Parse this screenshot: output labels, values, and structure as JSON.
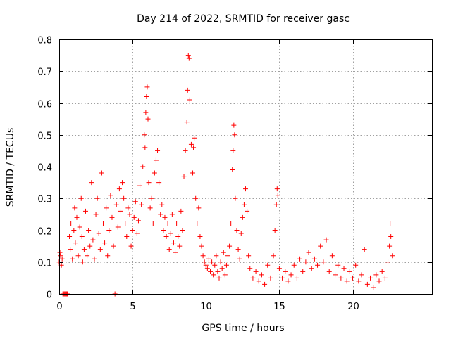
{
  "chart_data": {
    "type": "scatter",
    "title": "Day 214 of 2022, SRMTID for receiver gasc",
    "xlabel": "GPS time / hours",
    "ylabel": "SRMTID / TECUs",
    "xlim": [
      0,
      25.4
    ],
    "ylim": [
      0,
      0.8
    ],
    "xticks": [
      0,
      5,
      10,
      15,
      20
    ],
    "xtick_labels": [
      "0",
      "5",
      "10",
      "15",
      "20"
    ],
    "yticks": [
      0,
      0.1,
      0.2,
      0.3,
      0.4,
      0.5,
      0.6,
      0.7,
      0.8
    ],
    "ytick_labels": [
      "0",
      "0.1",
      "0.2",
      "0.3",
      "0.4",
      "0.5",
      "0.6",
      "0.7",
      "0.8"
    ],
    "grid": true,
    "marker": "+",
    "series": [
      {
        "name": "SRMTID",
        "color": "#ff0000",
        "points": [
          [
            0.0,
            0.1
          ],
          [
            0.05,
            0.13
          ],
          [
            0.1,
            0.12
          ],
          [
            0.15,
            0.09
          ],
          [
            0.2,
            0.11
          ],
          [
            0.25,
            0.0
          ],
          [
            0.3,
            0.0
          ],
          [
            0.35,
            0.0
          ],
          [
            0.4,
            0.0
          ],
          [
            0.45,
            0.0
          ],
          [
            0.5,
            0.0
          ],
          [
            0.55,
            0.0
          ],
          [
            0.6,
            0.0
          ],
          [
            0.7,
            0.18
          ],
          [
            0.75,
            0.14
          ],
          [
            0.8,
            0.22
          ],
          [
            0.9,
            0.11
          ],
          [
            1.0,
            0.2
          ],
          [
            1.05,
            0.27
          ],
          [
            1.1,
            0.16
          ],
          [
            1.2,
            0.24
          ],
          [
            1.3,
            0.12
          ],
          [
            1.4,
            0.21
          ],
          [
            1.5,
            0.3
          ],
          [
            1.55,
            0.18
          ],
          [
            1.6,
            0.1
          ],
          [
            1.7,
            0.14
          ],
          [
            1.8,
            0.26
          ],
          [
            1.9,
            0.12
          ],
          [
            2.0,
            0.2
          ],
          [
            2.1,
            0.15
          ],
          [
            2.2,
            0.35
          ],
          [
            2.3,
            0.17
          ],
          [
            2.4,
            0.11
          ],
          [
            2.5,
            0.25
          ],
          [
            2.6,
            0.3
          ],
          [
            2.7,
            0.19
          ],
          [
            2.8,
            0.14
          ],
          [
            2.9,
            0.38
          ],
          [
            3.0,
            0.22
          ],
          [
            3.1,
            0.16
          ],
          [
            3.2,
            0.27
          ],
          [
            3.3,
            0.12
          ],
          [
            3.4,
            0.2
          ],
          [
            3.5,
            0.31
          ],
          [
            3.6,
            0.24
          ],
          [
            3.7,
            0.15
          ],
          [
            3.8,
            0.0
          ],
          [
            3.9,
            0.28
          ],
          [
            4.0,
            0.21
          ],
          [
            4.1,
            0.33
          ],
          [
            4.2,
            0.26
          ],
          [
            4.3,
            0.35
          ],
          [
            4.4,
            0.3
          ],
          [
            4.5,
            0.22
          ],
          [
            4.6,
            0.18
          ],
          [
            4.7,
            0.27
          ],
          [
            4.8,
            0.25
          ],
          [
            4.9,
            0.15
          ],
          [
            5.0,
            0.2
          ],
          [
            5.1,
            0.24
          ],
          [
            5.2,
            0.29
          ],
          [
            5.3,
            0.19
          ],
          [
            5.4,
            0.23
          ],
          [
            5.5,
            0.34
          ],
          [
            5.6,
            0.28
          ],
          [
            5.7,
            0.4
          ],
          [
            5.8,
            0.5
          ],
          [
            5.85,
            0.46
          ],
          [
            5.9,
            0.57
          ],
          [
            5.95,
            0.62
          ],
          [
            6.0,
            0.65
          ],
          [
            6.05,
            0.55
          ],
          [
            6.1,
            0.35
          ],
          [
            6.2,
            0.27
          ],
          [
            6.3,
            0.3
          ],
          [
            6.4,
            0.22
          ],
          [
            6.5,
            0.38
          ],
          [
            6.6,
            0.42
          ],
          [
            6.7,
            0.45
          ],
          [
            6.8,
            0.35
          ],
          [
            6.9,
            0.25
          ],
          [
            7.0,
            0.28
          ],
          [
            7.1,
            0.2
          ],
          [
            7.2,
            0.24
          ],
          [
            7.3,
            0.18
          ],
          [
            7.4,
            0.22
          ],
          [
            7.5,
            0.14
          ],
          [
            7.6,
            0.19
          ],
          [
            7.7,
            0.25
          ],
          [
            7.8,
            0.16
          ],
          [
            7.9,
            0.13
          ],
          [
            8.0,
            0.22
          ],
          [
            8.1,
            0.18
          ],
          [
            8.2,
            0.15
          ],
          [
            8.3,
            0.26
          ],
          [
            8.4,
            0.2
          ],
          [
            8.5,
            0.37
          ],
          [
            8.6,
            0.45
          ],
          [
            8.7,
            0.54
          ],
          [
            8.75,
            0.64
          ],
          [
            8.8,
            0.75
          ],
          [
            8.85,
            0.74
          ],
          [
            8.9,
            0.61
          ],
          [
            9.0,
            0.47
          ],
          [
            9.1,
            0.38
          ],
          [
            9.15,
            0.46
          ],
          [
            9.2,
            0.49
          ],
          [
            9.3,
            0.3
          ],
          [
            9.4,
            0.22
          ],
          [
            9.5,
            0.27
          ],
          [
            9.6,
            0.18
          ],
          [
            9.7,
            0.15
          ],
          [
            9.8,
            0.12
          ],
          [
            9.9,
            0.1
          ],
          [
            10.0,
            0.09
          ],
          [
            10.1,
            0.08
          ],
          [
            10.2,
            0.11
          ],
          [
            10.3,
            0.07
          ],
          [
            10.4,
            0.1
          ],
          [
            10.5,
            0.06
          ],
          [
            10.6,
            0.09
          ],
          [
            10.7,
            0.12
          ],
          [
            10.8,
            0.07
          ],
          [
            10.9,
            0.05
          ],
          [
            11.0,
            0.1
          ],
          [
            11.1,
            0.08
          ],
          [
            11.2,
            0.13
          ],
          [
            11.3,
            0.06
          ],
          [
            11.4,
            0.09
          ],
          [
            11.5,
            0.12
          ],
          [
            11.6,
            0.15
          ],
          [
            11.7,
            0.22
          ],
          [
            11.8,
            0.39
          ],
          [
            11.85,
            0.45
          ],
          [
            11.9,
            0.53
          ],
          [
            11.95,
            0.5
          ],
          [
            12.0,
            0.3
          ],
          [
            12.1,
            0.2
          ],
          [
            12.2,
            0.14
          ],
          [
            12.3,
            0.11
          ],
          [
            12.4,
            0.19
          ],
          [
            12.5,
            0.24
          ],
          [
            12.6,
            0.28
          ],
          [
            12.7,
            0.33
          ],
          [
            12.8,
            0.26
          ],
          [
            12.9,
            0.12
          ],
          [
            13.0,
            0.08
          ],
          [
            13.2,
            0.05
          ],
          [
            13.4,
            0.07
          ],
          [
            13.6,
            0.04
          ],
          [
            13.8,
            0.06
          ],
          [
            14.0,
            0.03
          ],
          [
            14.2,
            0.09
          ],
          [
            14.4,
            0.05
          ],
          [
            14.6,
            0.12
          ],
          [
            14.7,
            0.2
          ],
          [
            14.8,
            0.28
          ],
          [
            14.85,
            0.33
          ],
          [
            14.9,
            0.31
          ],
          [
            15.0,
            0.08
          ],
          [
            15.2,
            0.05
          ],
          [
            15.4,
            0.07
          ],
          [
            15.6,
            0.04
          ],
          [
            15.8,
            0.06
          ],
          [
            16.0,
            0.09
          ],
          [
            16.2,
            0.05
          ],
          [
            16.4,
            0.11
          ],
          [
            16.6,
            0.07
          ],
          [
            16.8,
            0.1
          ],
          [
            17.0,
            0.13
          ],
          [
            17.2,
            0.08
          ],
          [
            17.4,
            0.11
          ],
          [
            17.6,
            0.09
          ],
          [
            17.8,
            0.15
          ],
          [
            18.0,
            0.1
          ],
          [
            18.2,
            0.17
          ],
          [
            18.4,
            0.07
          ],
          [
            18.6,
            0.12
          ],
          [
            18.8,
            0.06
          ],
          [
            19.0,
            0.09
          ],
          [
            19.2,
            0.05
          ],
          [
            19.4,
            0.08
          ],
          [
            19.6,
            0.04
          ],
          [
            19.8,
            0.07
          ],
          [
            20.0,
            0.05
          ],
          [
            20.2,
            0.09
          ],
          [
            20.4,
            0.04
          ],
          [
            20.6,
            0.06
          ],
          [
            20.8,
            0.14
          ],
          [
            21.0,
            0.03
          ],
          [
            21.2,
            0.05
          ],
          [
            21.4,
            0.02
          ],
          [
            21.6,
            0.06
          ],
          [
            21.8,
            0.04
          ],
          [
            22.0,
            0.07
          ],
          [
            22.2,
            0.05
          ],
          [
            22.4,
            0.1
          ],
          [
            22.5,
            0.15
          ],
          [
            22.55,
            0.22
          ],
          [
            22.6,
            0.18
          ],
          [
            22.7,
            0.12
          ]
        ]
      }
    ]
  }
}
